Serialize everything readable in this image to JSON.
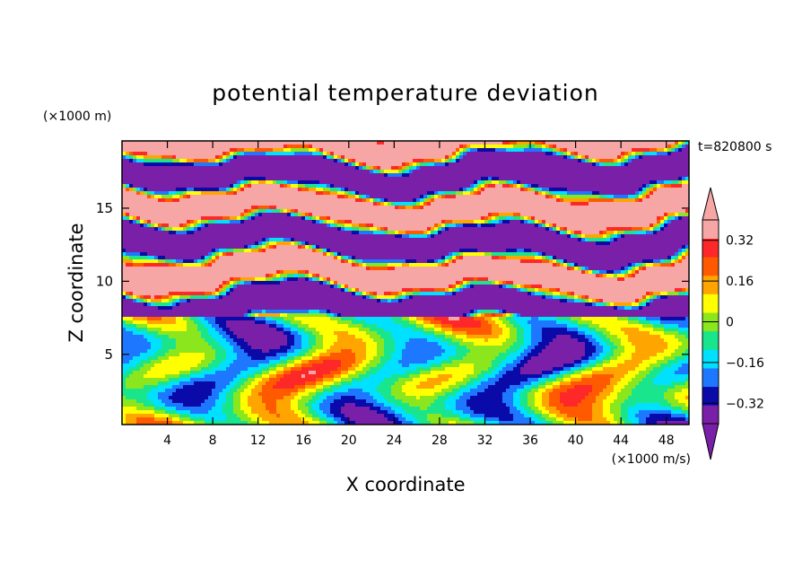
{
  "chart_data": {
    "type": "heatmap",
    "title": "potential temperature deviation",
    "xlabel": "X coordinate",
    "ylabel": "Z coordinate",
    "x_unit": "(×1000 m/s)",
    "y_unit": "(×1000 m)",
    "time_label": "t=820800 s",
    "xlim": [
      0,
      50
    ],
    "ylim": [
      0.2,
      19.6
    ],
    "x_ticks": [
      "4",
      "8",
      "12",
      "16",
      "20",
      "24",
      "28",
      "32",
      "36",
      "40",
      "44",
      "48"
    ],
    "x_tick_values": [
      4,
      8,
      12,
      16,
      20,
      24,
      28,
      32,
      36,
      40,
      44,
      48
    ],
    "y_ticks": [
      "5",
      "10",
      "15"
    ],
    "y_tick_values": [
      5,
      10,
      15
    ],
    "colorbar": {
      "levels": [
        -0.4,
        -0.32,
        -0.24,
        -0.16,
        -0.08,
        0,
        0.08,
        0.16,
        0.24,
        0.32,
        0.4
      ],
      "labels": [
        "0.32",
        "0.16",
        "0",
        "−0.16",
        "−0.32"
      ],
      "label_values": [
        0.32,
        0.16,
        0,
        -0.16,
        -0.32
      ],
      "colors": [
        "#7a1fa8",
        "#0a0aa8",
        "#1e78ff",
        "#00e0ff",
        "#19e68c",
        "#8ce61e",
        "#ffff00",
        "#ffa500",
        "#ff5a00",
        "#ff2828",
        "#f7a6a6"
      ],
      "under_color": "#7a1fa8",
      "over_color": "#f7a6a6"
    }
  }
}
